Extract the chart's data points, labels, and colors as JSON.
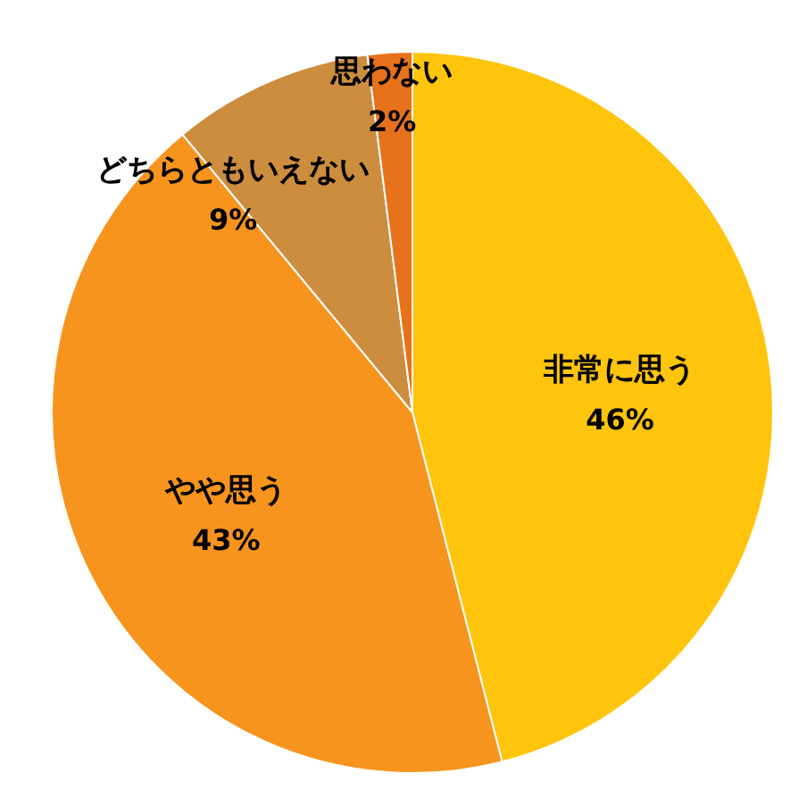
{
  "chart_data": {
    "type": "pie",
    "categories": [
      "非常に思う",
      "やや思う",
      "どちらともいえない",
      "思わない"
    ],
    "values": [
      46,
      43,
      9,
      2
    ],
    "colors": [
      "#ffc40c",
      "#f7941d",
      "#cd8d3f",
      "#e8711c"
    ],
    "value_labels": [
      "46%",
      "43%",
      "9%",
      "2%"
    ],
    "legend": false
  }
}
